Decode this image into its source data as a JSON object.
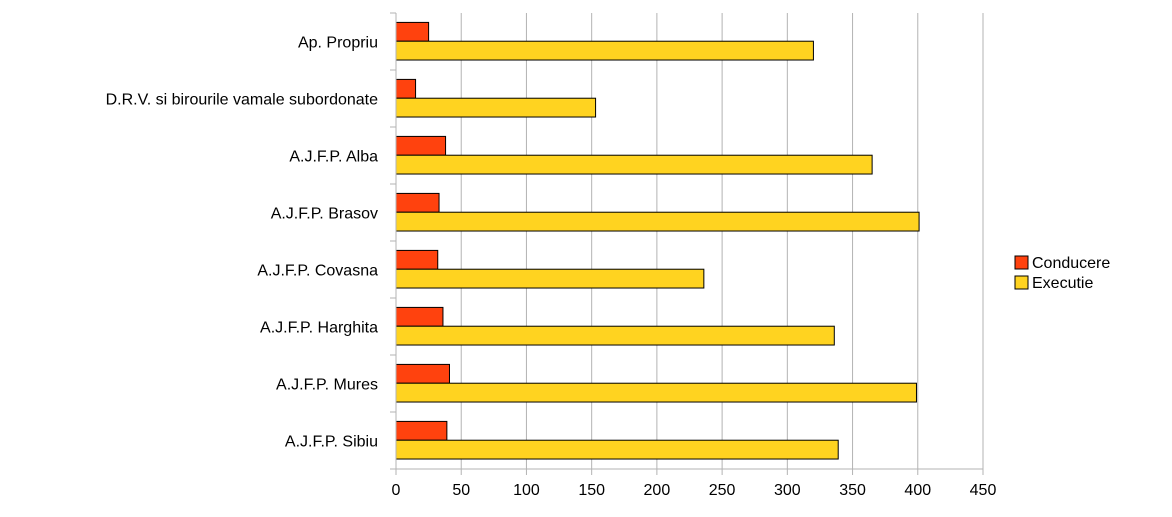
{
  "chart_data": {
    "type": "bar",
    "orientation": "horizontal",
    "categories": [
      "Ap. Propriu",
      "D.R.V. si birourile vamale subordonate",
      "A.J.F.P. Alba",
      "A.J.F.P. Brasov",
      "A.J.F.P. Covasna",
      "A.J.F.P. Harghita",
      "A.J.F.P. Mures",
      "A.J.F.P. Sibiu"
    ],
    "series": [
      {
        "name": "Conducere",
        "color": "#ff420e",
        "values": [
          25,
          15,
          38,
          33,
          32,
          36,
          41,
          39
        ]
      },
      {
        "name": "Executie",
        "color": "#ffd320",
        "values": [
          320,
          153,
          365,
          401,
          236,
          336,
          399,
          339
        ]
      }
    ],
    "xlim": [
      0,
      450
    ],
    "xticks": [
      0,
      50,
      100,
      150,
      200,
      250,
      300,
      350,
      400,
      450
    ],
    "grid": true,
    "legend_position": "right"
  }
}
